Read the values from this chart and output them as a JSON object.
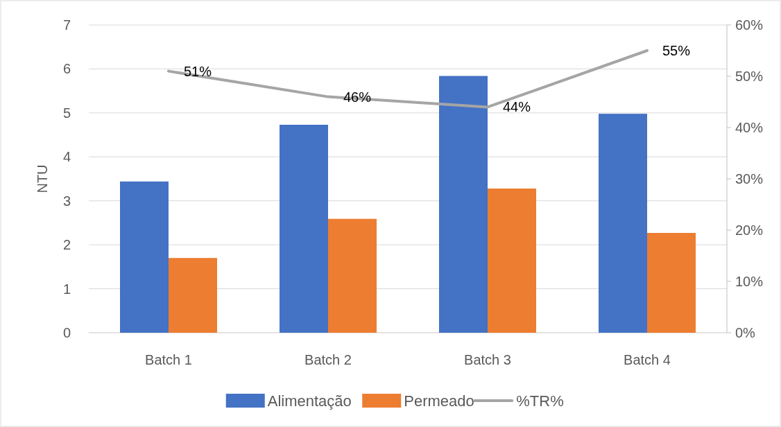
{
  "chart_data": {
    "type": "bar",
    "ylabel": "NTU",
    "categories": [
      "Batch 1",
      "Batch 2",
      "Batch 3",
      "Batch 4"
    ],
    "ylim": [
      0,
      7
    ],
    "yticks": [
      0,
      1,
      2,
      3,
      4,
      5,
      6,
      7
    ],
    "y2lim": [
      0,
      60
    ],
    "y2ticks": [
      {
        "value": 0,
        "label": "0%"
      },
      {
        "value": 10,
        "label": "10%"
      },
      {
        "value": 20,
        "label": "20%"
      },
      {
        "value": 30,
        "label": "30%"
      },
      {
        "value": 40,
        "label": "40%"
      },
      {
        "value": 50,
        "label": "50%"
      },
      {
        "value": 60,
        "label": "60%"
      }
    ],
    "grid": "y",
    "legend": "bottom",
    "series": [
      {
        "name": "Alimentação",
        "color": "#4472c4",
        "values": [
          3.44,
          4.73,
          5.84,
          4.98
        ]
      },
      {
        "name": "Permeado",
        "color": "#ed7d31",
        "values": [
          1.7,
          2.59,
          3.28,
          2.27
        ]
      },
      {
        "name": "%TR%",
        "type": "line",
        "axis": "y2",
        "color": "#a5a5a5",
        "values": [
          51,
          46,
          44,
          55
        ],
        "value_labels": [
          "51%",
          "46%",
          "44%",
          "55%"
        ]
      }
    ]
  }
}
